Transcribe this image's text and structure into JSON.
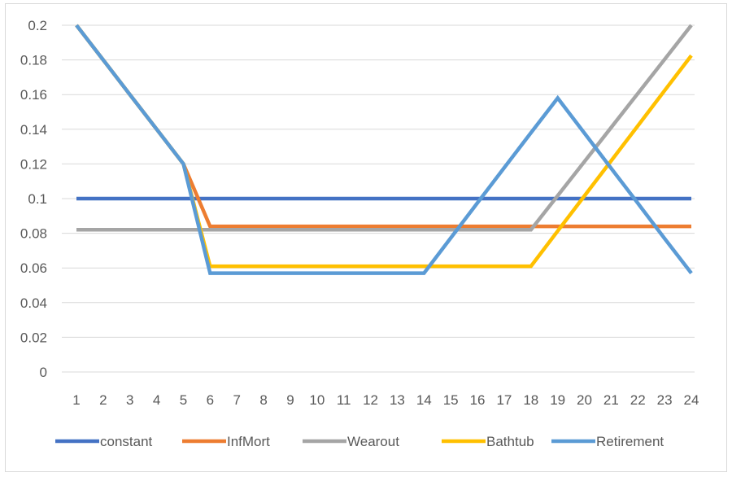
{
  "chart_data": {
    "type": "line",
    "title": "",
    "xlabel": "",
    "ylabel": "",
    "x": [
      1,
      2,
      3,
      4,
      5,
      6,
      7,
      8,
      9,
      10,
      11,
      12,
      13,
      14,
      15,
      16,
      17,
      18,
      19,
      20,
      21,
      22,
      23,
      24
    ],
    "ylim": [
      0,
      0.2
    ],
    "yticks": [
      "0",
      "0.02",
      "0.04",
      "0.06",
      "0.08",
      "0.1",
      "0.12",
      "0.14",
      "0.16",
      "0.18",
      "0.2"
    ],
    "grid": true,
    "legend": "bottom",
    "series": [
      {
        "name": "constant",
        "color": "#4472C4",
        "values": [
          0.1,
          0.1,
          0.1,
          0.1,
          0.1,
          0.1,
          0.1,
          0.1,
          0.1,
          0.1,
          0.1,
          0.1,
          0.1,
          0.1,
          0.1,
          0.1,
          0.1,
          0.1,
          0.1,
          0.1,
          0.1,
          0.1,
          0.1,
          0.1
        ]
      },
      {
        "name": "InfMort",
        "color": "#ED7D31",
        "values": [
          0.2,
          0.18,
          0.16,
          0.14,
          0.12,
          0.084,
          0.084,
          0.084,
          0.084,
          0.084,
          0.084,
          0.084,
          0.084,
          0.084,
          0.084,
          0.084,
          0.084,
          0.084,
          0.084,
          0.084,
          0.084,
          0.084,
          0.084,
          0.084
        ]
      },
      {
        "name": "Wearout",
        "color": "#A5A5A5",
        "values": [
          0.082,
          0.082,
          0.082,
          0.082,
          0.082,
          0.082,
          0.082,
          0.082,
          0.082,
          0.082,
          0.082,
          0.082,
          0.082,
          0.082,
          0.082,
          0.082,
          0.082,
          0.082,
          0.1017,
          0.1213,
          0.141,
          0.1607,
          0.1803,
          0.2
        ]
      },
      {
        "name": "Bathtub",
        "color": "#FFC000",
        "values": [
          0.2,
          0.18,
          0.16,
          0.14,
          0.12,
          0.061,
          0.061,
          0.061,
          0.061,
          0.061,
          0.061,
          0.061,
          0.061,
          0.061,
          0.061,
          0.061,
          0.061,
          0.061,
          0.0813,
          0.1015,
          0.1218,
          0.142,
          0.1623,
          0.1825
        ]
      },
      {
        "name": "Retirement",
        "color": "#5B9BD5",
        "values": [
          0.2,
          0.18,
          0.16,
          0.14,
          0.12,
          0.057,
          0.057,
          0.057,
          0.057,
          0.057,
          0.057,
          0.057,
          0.057,
          0.057,
          0.0773,
          0.0975,
          0.1178,
          0.138,
          0.158,
          0.1378,
          0.1175,
          0.0973,
          0.077,
          0.057
        ]
      }
    ]
  }
}
